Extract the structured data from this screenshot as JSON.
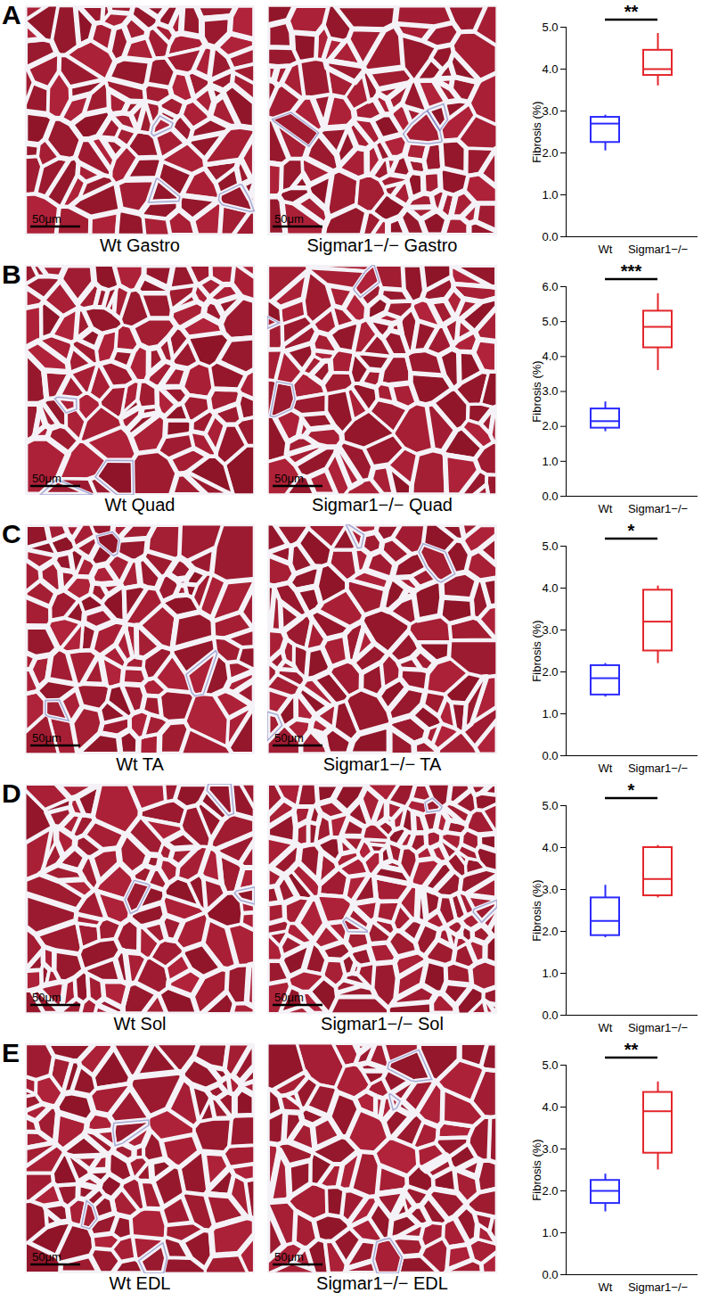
{
  "chart_data": [
    {
      "type": "box",
      "panel": "A",
      "y_label": "Fibrosis (%)",
      "annotations": [
        "**"
      ],
      "images": [
        {
          "caption": "Wt Gastro",
          "scale_bar": "50μm"
        },
        {
          "caption": "Sigmar1−/− Gastro",
          "scale_bar": "50μm"
        }
      ],
      "categories": [
        "Wt",
        "Sigmar1−/−"
      ],
      "colors": [
        "#2b2bff",
        "#e3262b"
      ],
      "boxes": [
        {
          "min": 2.05,
          "q1": 2.25,
          "median": 2.7,
          "q3": 2.85,
          "max": 2.9
        },
        {
          "min": 3.6,
          "q1": 3.85,
          "median": 4.0,
          "q3": 4.45,
          "max": 4.85
        }
      ],
      "ylim": [
        0,
        5
      ],
      "yticks": [
        0,
        1,
        2,
        3,
        4,
        5
      ]
    },
    {
      "type": "box",
      "panel": "B",
      "y_label": "Fibrosis (%)",
      "annotations": [
        "***"
      ],
      "images": [
        {
          "caption": "Wt Quad",
          "scale_bar": "50μm"
        },
        {
          "caption": "Sigmar1−/− Quad",
          "scale_bar": "50μm"
        }
      ],
      "categories": [
        "Wt",
        "Sigmar1−/−"
      ],
      "colors": [
        "#2b2bff",
        "#e3262b"
      ],
      "boxes": [
        {
          "min": 1.85,
          "q1": 1.95,
          "median": 2.15,
          "q3": 2.5,
          "max": 2.7
        },
        {
          "min": 3.6,
          "q1": 4.25,
          "median": 4.85,
          "q3": 5.3,
          "max": 5.8
        }
      ],
      "ylim": [
        0,
        6
      ],
      "yticks": [
        0,
        1,
        2,
        3,
        4,
        5,
        6
      ]
    },
    {
      "type": "box",
      "panel": "C",
      "y_label": "Fibrosis (%)",
      "annotations": [
        "*"
      ],
      "images": [
        {
          "caption": "Wt TA",
          "scale_bar": "50μm"
        },
        {
          "caption": "Sigmar1−/− TA",
          "scale_bar": "50μm"
        }
      ],
      "categories": [
        "Wt",
        "Sigmar1−/−"
      ],
      "colors": [
        "#2b2bff",
        "#e3262b"
      ],
      "boxes": [
        {
          "min": 1.4,
          "q1": 1.45,
          "median": 1.85,
          "q3": 2.15,
          "max": 2.2
        },
        {
          "min": 2.2,
          "q1": 2.5,
          "median": 3.2,
          "q3": 3.95,
          "max": 4.05
        }
      ],
      "ylim": [
        0,
        5
      ],
      "yticks": [
        0,
        1,
        2,
        3,
        4,
        5
      ]
    },
    {
      "type": "box",
      "panel": "D",
      "y_label": "Fibrosis (%)",
      "annotations": [
        "*"
      ],
      "images": [
        {
          "caption": "Wt Sol",
          "scale_bar": "50μm"
        },
        {
          "caption": "Sigmar1−/− Sol",
          "scale_bar": "50μm"
        }
      ],
      "categories": [
        "Wt",
        "Sigmar1−/−"
      ],
      "colors": [
        "#2b2bff",
        "#e3262b"
      ],
      "boxes": [
        {
          "min": 1.85,
          "q1": 1.9,
          "median": 2.25,
          "q3": 2.8,
          "max": 3.1
        },
        {
          "min": 2.8,
          "q1": 2.85,
          "median": 3.25,
          "q3": 4.0,
          "max": 4.05
        }
      ],
      "ylim": [
        0,
        5
      ],
      "yticks": [
        0,
        1,
        2,
        3,
        4,
        5
      ]
    },
    {
      "type": "box",
      "panel": "E",
      "y_label": "Fibrosis (%)",
      "annotations": [
        "**"
      ],
      "images": [
        {
          "caption": "Wt EDL",
          "scale_bar": "50μm"
        },
        {
          "caption": "Sigmar1−/− EDL",
          "scale_bar": "50μm"
        }
      ],
      "categories": [
        "Wt",
        "Sigmar1−/−"
      ],
      "colors": [
        "#2b2bff",
        "#e3262b"
      ],
      "boxes": [
        {
          "min": 1.5,
          "q1": 1.7,
          "median": 2.0,
          "q3": 2.25,
          "max": 2.4
        },
        {
          "min": 2.5,
          "q1": 2.9,
          "median": 3.9,
          "q3": 4.35,
          "max": 4.6
        }
      ],
      "ylim": [
        0,
        5
      ],
      "yticks": [
        0,
        1,
        2,
        3,
        4,
        5
      ]
    }
  ]
}
